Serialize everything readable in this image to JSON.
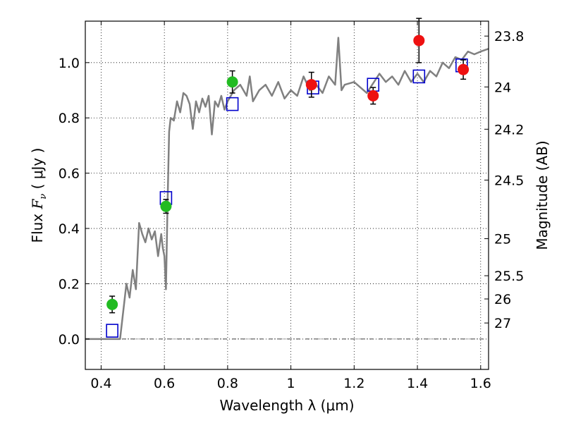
{
  "chart_data": {
    "type": "scatter",
    "xlabel": "Wavelength  λ (μm)",
    "ylabel_prefix": "Flux  ",
    "ylabel_symbol": "F",
    "ylabel_subscript": "ν",
    "ylabel_unit": "  ( μJy )",
    "y2label": "Magnitude (AB)",
    "xlim": [
      0.35,
      1.625
    ],
    "ylim": [
      -0.11,
      1.15
    ],
    "grid": true,
    "xticks": [
      0.4,
      0.6,
      0.8,
      1.0,
      1.2,
      1.4,
      1.6
    ],
    "xtick_labels": [
      "0.4",
      "0.6",
      "0.8",
      "1",
      "1.2",
      "1.4",
      "1.6"
    ],
    "yticks": [
      0.0,
      0.2,
      0.4,
      0.6,
      0.8,
      1.0
    ],
    "ytick_labels": [
      "0.0",
      "0.2",
      "0.4",
      "0.6",
      "0.8",
      "1.0"
    ],
    "y2ticks": [
      {
        "label": "23.8",
        "flux": 1.096
      },
      {
        "label": "24",
        "flux": 0.912
      },
      {
        "label": "24.2",
        "flux": 0.759
      },
      {
        "label": "24.5",
        "flux": 0.575
      },
      {
        "label": "25",
        "flux": 0.363
      },
      {
        "label": "25.5",
        "flux": 0.229
      },
      {
        "label": "26",
        "flux": 0.145
      },
      {
        "label": "27",
        "flux": 0.058
      }
    ],
    "series": [
      {
        "marker": "line",
        "color": "#808080",
        "x": [
          0.35,
          0.46,
          0.47,
          0.48,
          0.49,
          0.5,
          0.51,
          0.52,
          0.53,
          0.54,
          0.55,
          0.56,
          0.57,
          0.58,
          0.59,
          0.595,
          0.6,
          0.605,
          0.61,
          0.615,
          0.62,
          0.63,
          0.64,
          0.65,
          0.66,
          0.67,
          0.68,
          0.69,
          0.7,
          0.71,
          0.72,
          0.73,
          0.74,
          0.75,
          0.76,
          0.77,
          0.78,
          0.79,
          0.8,
          0.82,
          0.84,
          0.86,
          0.87,
          0.88,
          0.9,
          0.92,
          0.94,
          0.96,
          0.98,
          1.0,
          1.02,
          1.04,
          1.06,
          1.08,
          1.1,
          1.12,
          1.14,
          1.15,
          1.16,
          1.17,
          1.2,
          1.24,
          1.28,
          1.3,
          1.32,
          1.34,
          1.36,
          1.38,
          1.4,
          1.42,
          1.44,
          1.46,
          1.48,
          1.5,
          1.52,
          1.54,
          1.56,
          1.58,
          1.6,
          1.625
        ],
        "y": [
          0.0,
          0.0,
          0.1,
          0.2,
          0.15,
          0.25,
          0.18,
          0.42,
          0.38,
          0.35,
          0.4,
          0.36,
          0.39,
          0.3,
          0.38,
          0.33,
          0.3,
          0.18,
          0.48,
          0.75,
          0.8,
          0.79,
          0.86,
          0.82,
          0.89,
          0.88,
          0.85,
          0.76,
          0.86,
          0.82,
          0.87,
          0.84,
          0.88,
          0.74,
          0.86,
          0.84,
          0.88,
          0.83,
          0.86,
          0.9,
          0.92,
          0.88,
          0.95,
          0.86,
          0.9,
          0.92,
          0.88,
          0.93,
          0.87,
          0.9,
          0.88,
          0.95,
          0.9,
          0.92,
          0.89,
          0.95,
          0.92,
          1.09,
          0.9,
          0.92,
          0.93,
          0.89,
          0.96,
          0.93,
          0.95,
          0.92,
          0.97,
          0.93,
          0.96,
          0.93,
          0.97,
          0.95,
          1.0,
          0.98,
          1.02,
          1.01,
          1.04,
          1.03,
          1.04,
          1.05
        ]
      },
      {
        "marker": "square",
        "color": "#0000cc",
        "x": [
          0.435,
          0.605,
          0.815,
          1.07,
          1.26,
          1.405,
          1.54
        ],
        "y": [
          0.03,
          0.51,
          0.85,
          0.91,
          0.92,
          0.95,
          0.99
        ]
      },
      {
        "marker": "circle",
        "color": "#22bb22",
        "x": [
          0.435,
          0.605,
          0.815
        ],
        "y": [
          0.125,
          0.48,
          0.93
        ],
        "err": [
          0.03,
          0.025,
          0.04
        ]
      },
      {
        "marker": "circle",
        "color": "#ee1111",
        "x": [
          1.065,
          1.26,
          1.405,
          1.545
        ],
        "y": [
          0.92,
          0.88,
          1.08,
          0.975
        ],
        "err": [
          0.045,
          0.03,
          0.08,
          0.035
        ]
      }
    ]
  }
}
